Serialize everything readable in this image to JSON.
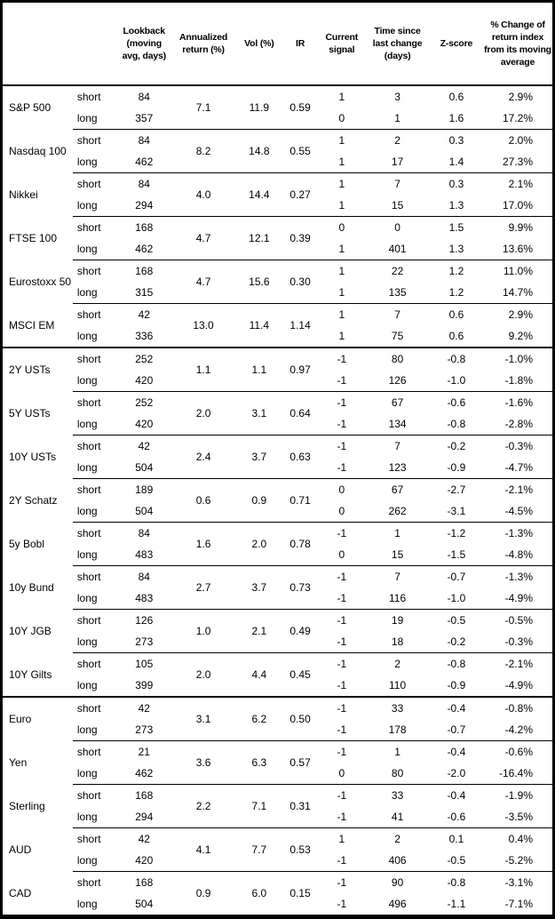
{
  "header": {
    "instrument": "",
    "horizon": "",
    "lookback": "Lookback (moving avg, days)",
    "annualized_return": "Annualized return (%)",
    "vol": "Vol (%)",
    "ir": "IR",
    "current_signal": "Current signal",
    "time_since_last_change": "Time since last change (days)",
    "zscore": "Z-score",
    "pct_change": "% Change of return index from its moving average"
  },
  "sections": [
    {
      "id": "equities",
      "instruments": [
        {
          "name": "S&P 500",
          "annualized_return": "7.1",
          "vol": "11.9",
          "ir": "0.59",
          "rows": [
            {
              "horizon": "short",
              "lookback": "84",
              "signal": "1",
              "time_since_last_change": "3",
              "zscore": "0.6",
              "pct_change": "2.9%"
            },
            {
              "horizon": "long",
              "lookback": "357",
              "signal": "0",
              "time_since_last_change": "1",
              "zscore": "1.6",
              "pct_change": "17.2%"
            }
          ]
        },
        {
          "name": "Nasdaq 100",
          "annualized_return": "8.2",
          "vol": "14.8",
          "ir": "0.55",
          "rows": [
            {
              "horizon": "short",
              "lookback": "84",
              "signal": "1",
              "time_since_last_change": "2",
              "zscore": "0.3",
              "pct_change": "2.0%"
            },
            {
              "horizon": "long",
              "lookback": "462",
              "signal": "1",
              "time_since_last_change": "17",
              "zscore": "1.4",
              "pct_change": "27.3%"
            }
          ]
        },
        {
          "name": "Nikkei",
          "annualized_return": "4.0",
          "vol": "14.4",
          "ir": "0.27",
          "rows": [
            {
              "horizon": "short",
              "lookback": "84",
              "signal": "1",
              "time_since_last_change": "7",
              "zscore": "0.3",
              "pct_change": "2.1%"
            },
            {
              "horizon": "long",
              "lookback": "294",
              "signal": "1",
              "time_since_last_change": "15",
              "zscore": "1.3",
              "pct_change": "17.0%"
            }
          ]
        },
        {
          "name": "FTSE 100",
          "annualized_return": "4.7",
          "vol": "12.1",
          "ir": "0.39",
          "rows": [
            {
              "horizon": "short",
              "lookback": "168",
              "signal": "0",
              "time_since_last_change": "0",
              "zscore": "1.5",
              "pct_change": "9.9%"
            },
            {
              "horizon": "long",
              "lookback": "462",
              "signal": "1",
              "time_since_last_change": "401",
              "zscore": "1.3",
              "pct_change": "13.6%"
            }
          ]
        },
        {
          "name": "Eurostoxx 50",
          "annualized_return": "4.7",
          "vol": "15.6",
          "ir": "0.30",
          "rows": [
            {
              "horizon": "short",
              "lookback": "168",
              "signal": "1",
              "time_since_last_change": "22",
              "zscore": "1.2",
              "pct_change": "11.0%"
            },
            {
              "horizon": "long",
              "lookback": "315",
              "signal": "1",
              "time_since_last_change": "135",
              "zscore": "1.2",
              "pct_change": "14.7%"
            }
          ]
        },
        {
          "name": "MSCI EM",
          "annualized_return": "13.0",
          "vol": "11.4",
          "ir": "1.14",
          "rows": [
            {
              "horizon": "short",
              "lookback": "42",
              "signal": "1",
              "time_since_last_change": "7",
              "zscore": "0.6",
              "pct_change": "2.9%"
            },
            {
              "horizon": "long",
              "lookback": "336",
              "signal": "1",
              "time_since_last_change": "75",
              "zscore": "0.6",
              "pct_change": "9.2%"
            }
          ]
        }
      ]
    },
    {
      "id": "bonds",
      "instruments": [
        {
          "name": "2Y USTs",
          "annualized_return": "1.1",
          "vol": "1.1",
          "ir": "0.97",
          "rows": [
            {
              "horizon": "short",
              "lookback": "252",
              "signal": "-1",
              "time_since_last_change": "80",
              "zscore": "-0.8",
              "pct_change": "-1.0%"
            },
            {
              "horizon": "long",
              "lookback": "420",
              "signal": "-1",
              "time_since_last_change": "126",
              "zscore": "-1.0",
              "pct_change": "-1.8%"
            }
          ]
        },
        {
          "name": "5Y USTs",
          "annualized_return": "2.0",
          "vol": "3.1",
          "ir": "0.64",
          "rows": [
            {
              "horizon": "short",
              "lookback": "252",
              "signal": "-1",
              "time_since_last_change": "67",
              "zscore": "-0.6",
              "pct_change": "-1.6%"
            },
            {
              "horizon": "long",
              "lookback": "420",
              "signal": "-1",
              "time_since_last_change": "134",
              "zscore": "-0.8",
              "pct_change": "-2.8%"
            }
          ]
        },
        {
          "name": "10Y USTs",
          "annualized_return": "2.4",
          "vol": "3.7",
          "ir": "0.63",
          "rows": [
            {
              "horizon": "short",
              "lookback": "42",
              "signal": "-1",
              "time_since_last_change": "7",
              "zscore": "-0.2",
              "pct_change": "-0.3%"
            },
            {
              "horizon": "long",
              "lookback": "504",
              "signal": "-1",
              "time_since_last_change": "123",
              "zscore": "-0.9",
              "pct_change": "-4.7%"
            }
          ]
        },
        {
          "name": "2Y Schatz",
          "annualized_return": "0.6",
          "vol": "0.9",
          "ir": "0.71",
          "rows": [
            {
              "horizon": "short",
              "lookback": "189",
              "signal": "0",
              "time_since_last_change": "67",
              "zscore": "-2.7",
              "pct_change": "-2.1%"
            },
            {
              "horizon": "long",
              "lookback": "504",
              "signal": "0",
              "time_since_last_change": "262",
              "zscore": "-3.1",
              "pct_change": "-4.5%"
            }
          ]
        },
        {
          "name": "5y Bobl",
          "annualized_return": "1.6",
          "vol": "2.0",
          "ir": "0.78",
          "rows": [
            {
              "horizon": "short",
              "lookback": "84",
              "signal": "-1",
              "time_since_last_change": "1",
              "zscore": "-1.2",
              "pct_change": "-1.3%"
            },
            {
              "horizon": "long",
              "lookback": "483",
              "signal": "0",
              "time_since_last_change": "15",
              "zscore": "-1.5",
              "pct_change": "-4.8%"
            }
          ]
        },
        {
          "name": "10y Bund",
          "annualized_return": "2.7",
          "vol": "3.7",
          "ir": "0.73",
          "rows": [
            {
              "horizon": "short",
              "lookback": "84",
              "signal": "-1",
              "time_since_last_change": "7",
              "zscore": "-0.7",
              "pct_change": "-1.3%"
            },
            {
              "horizon": "long",
              "lookback": "483",
              "signal": "-1",
              "time_since_last_change": "116",
              "zscore": "-1.0",
              "pct_change": "-4.9%"
            }
          ]
        },
        {
          "name": "10Y JGB",
          "annualized_return": "1.0",
          "vol": "2.1",
          "ir": "0.49",
          "rows": [
            {
              "horizon": "short",
              "lookback": "126",
              "signal": "-1",
              "time_since_last_change": "19",
              "zscore": "-0.5",
              "pct_change": "-0.5%"
            },
            {
              "horizon": "long",
              "lookback": "273",
              "signal": "-1",
              "time_since_last_change": "18",
              "zscore": "-0.2",
              "pct_change": "-0.3%"
            }
          ]
        },
        {
          "name": "10Y Gilts",
          "annualized_return": "2.0",
          "vol": "4.4",
          "ir": "0.45",
          "rows": [
            {
              "horizon": "short",
              "lookback": "105",
              "signal": "-1",
              "time_since_last_change": "2",
              "zscore": "-0.8",
              "pct_change": "-2.1%"
            },
            {
              "horizon": "long",
              "lookback": "399",
              "signal": "-1",
              "time_since_last_change": "110",
              "zscore": "-0.9",
              "pct_change": "-4.9%"
            }
          ]
        }
      ]
    },
    {
      "id": "fx",
      "instruments": [
        {
          "name": "Euro",
          "annualized_return": "3.1",
          "vol": "6.2",
          "ir": "0.50",
          "rows": [
            {
              "horizon": "short",
              "lookback": "42",
              "signal": "-1",
              "time_since_last_change": "33",
              "zscore": "-0.4",
              "pct_change": "-0.8%"
            },
            {
              "horizon": "long",
              "lookback": "273",
              "signal": "-1",
              "time_since_last_change": "178",
              "zscore": "-0.7",
              "pct_change": "-4.2%"
            }
          ]
        },
        {
          "name": "Yen",
          "annualized_return": "3.6",
          "vol": "6.3",
          "ir": "0.57",
          "rows": [
            {
              "horizon": "short",
              "lookback": "21",
              "signal": "-1",
              "time_since_last_change": "1",
              "zscore": "-0.4",
              "pct_change": "-0.6%"
            },
            {
              "horizon": "long",
              "lookback": "462",
              "signal": "0",
              "time_since_last_change": "80",
              "zscore": "-2.0",
              "pct_change": "-16.4%"
            }
          ]
        },
        {
          "name": "Sterling",
          "annualized_return": "2.2",
          "vol": "7.1",
          "ir": "0.31",
          "rows": [
            {
              "horizon": "short",
              "lookback": "168",
              "signal": "-1",
              "time_since_last_change": "33",
              "zscore": "-0.4",
              "pct_change": "-1.9%"
            },
            {
              "horizon": "long",
              "lookback": "294",
              "signal": "-1",
              "time_since_last_change": "41",
              "zscore": "-0.6",
              "pct_change": "-3.5%"
            }
          ]
        },
        {
          "name": "AUD",
          "annualized_return": "4.1",
          "vol": "7.7",
          "ir": "0.53",
          "rows": [
            {
              "horizon": "short",
              "lookback": "42",
              "signal": "1",
              "time_since_last_change": "2",
              "zscore": "0.1",
              "pct_change": "0.4%"
            },
            {
              "horizon": "long",
              "lookback": "420",
              "signal": "-1",
              "time_since_last_change": "406",
              "zscore": "-0.5",
              "pct_change": "-5.2%"
            }
          ]
        },
        {
          "name": "CAD",
          "annualized_return": "0.9",
          "vol": "6.0",
          "ir": "0.15",
          "rows": [
            {
              "horizon": "short",
              "lookback": "168",
              "signal": "-1",
              "time_since_last_change": "90",
              "zscore": "-0.8",
              "pct_change": "-3.1%"
            },
            {
              "horizon": "long",
              "lookback": "504",
              "signal": "-1",
              "time_since_last_change": "496",
              "zscore": "-1.1",
              "pct_change": "-7.1%"
            }
          ]
        }
      ]
    }
  ]
}
